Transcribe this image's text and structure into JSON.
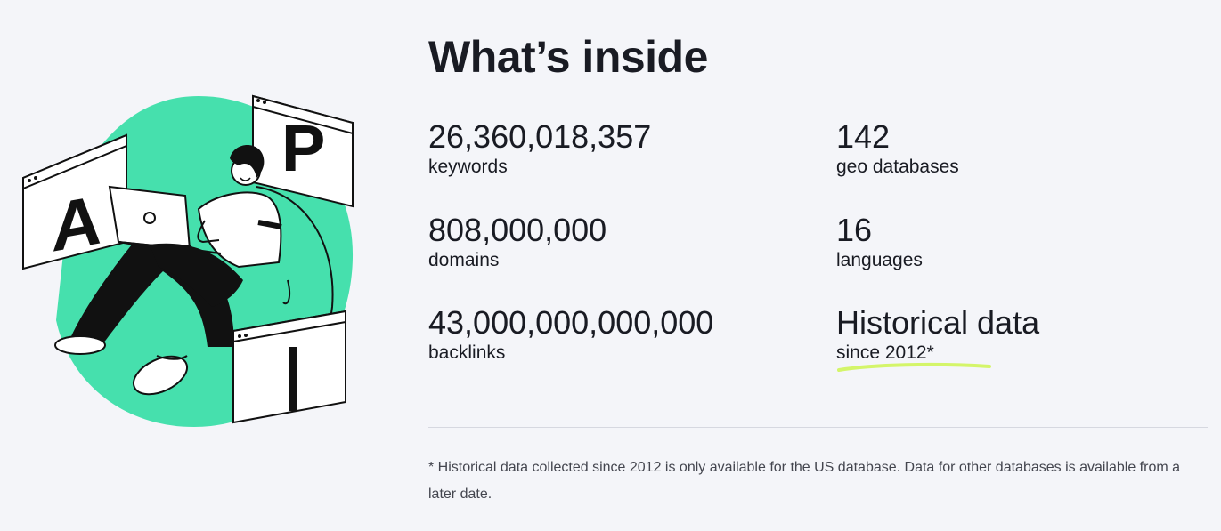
{
  "section": {
    "title": "What’s inside"
  },
  "illustration": {
    "letters": [
      "A",
      "P",
      "I"
    ],
    "colors": {
      "accent_green": "#46e0ad",
      "ink": "#111111",
      "paper": "#ffffff",
      "highlight": "#d4f56a"
    }
  },
  "stats": [
    {
      "value": "26,360,018,357",
      "label": "keywords"
    },
    {
      "value": "142",
      "label": "geo databases"
    },
    {
      "value": "808,000,000",
      "label": "domains"
    },
    {
      "value": "16",
      "label": "languages"
    },
    {
      "value": "43,000,000,000,000",
      "label": "backlinks"
    },
    {
      "value": "Historical data",
      "label": "since 2012*"
    }
  ],
  "footnote": "* Historical data collected since 2012 is only available for the US database. Data for other databases is available from a later date."
}
